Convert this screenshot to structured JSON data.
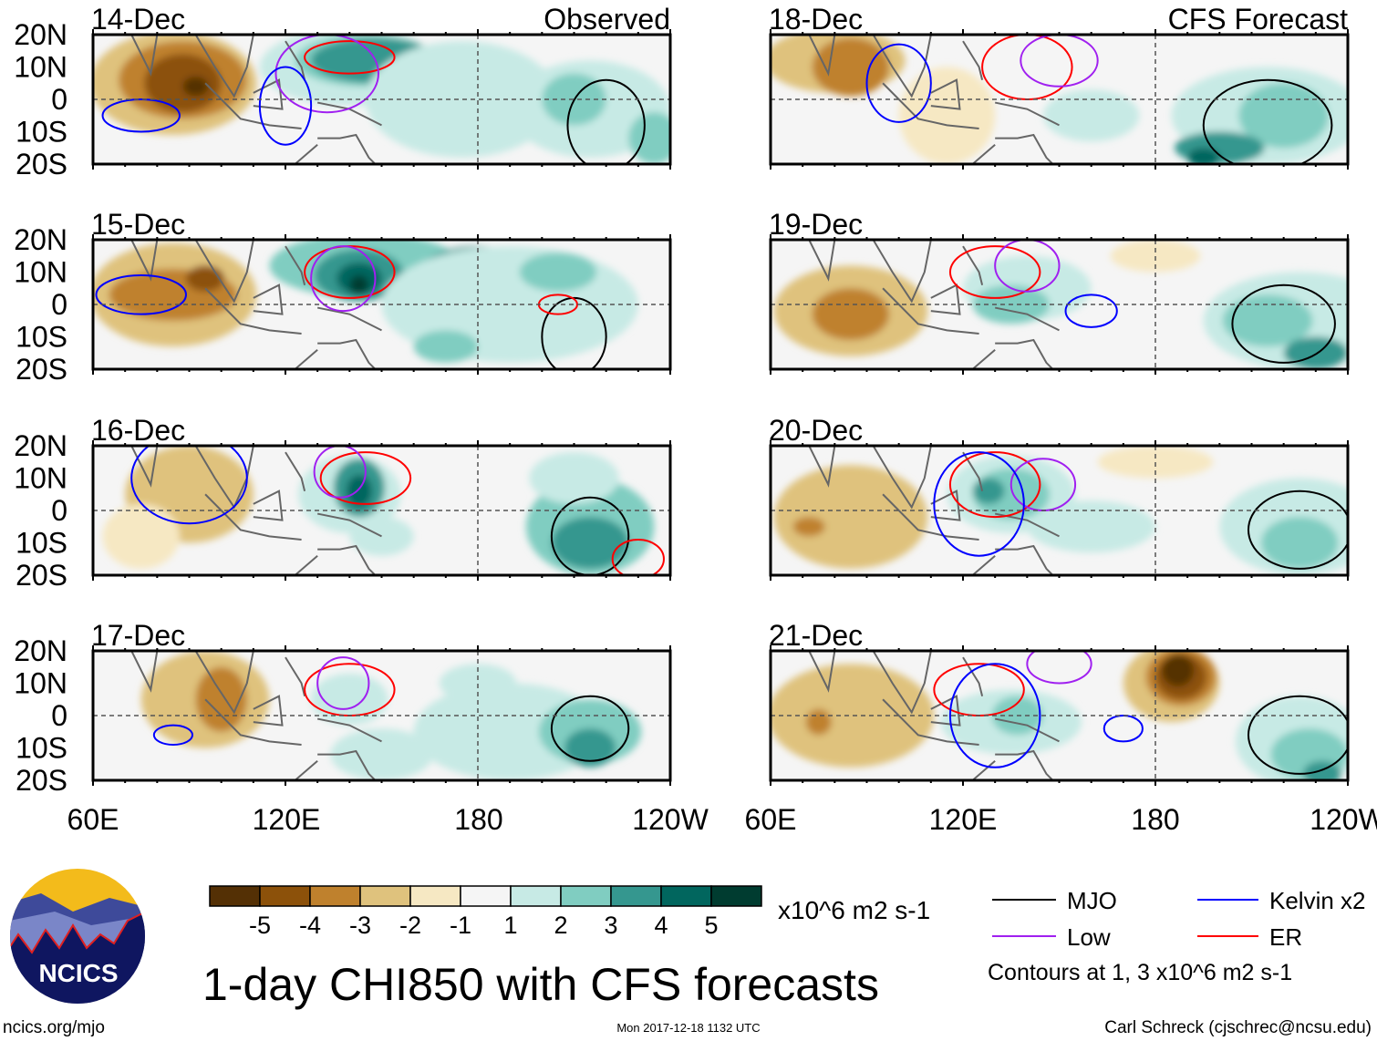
{
  "figure": {
    "title": "1-day CHI850 with CFS forecasts",
    "observed_label": "Observed",
    "forecast_label": "CFS Forecast",
    "panels": [
      {
        "date": "14-Dec",
        "kind": "observed"
      },
      {
        "date": "15-Dec",
        "kind": "observed"
      },
      {
        "date": "16-Dec",
        "kind": "observed"
      },
      {
        "date": "17-Dec",
        "kind": "observed"
      },
      {
        "date": "18-Dec",
        "kind": "forecast"
      },
      {
        "date": "19-Dec",
        "kind": "forecast"
      },
      {
        "date": "20-Dec",
        "kind": "forecast"
      },
      {
        "date": "21-Dec",
        "kind": "forecast"
      }
    ],
    "lat_labels": [
      "20N",
      "10N",
      "0",
      "10S",
      "20S"
    ],
    "lon_labels": [
      "60E",
      "120E",
      "180",
      "120W"
    ]
  },
  "colorbar": {
    "labels": [
      "-5",
      "-4",
      "-3",
      "-2",
      "-1",
      "1",
      "2",
      "3",
      "4",
      "5"
    ],
    "colors": [
      "#543005",
      "#8c510a",
      "#bf812d",
      "#dfc27d",
      "#f6e8c3",
      "#f5f5f5",
      "#c7eae5",
      "#80cdc1",
      "#35978f",
      "#01665e",
      "#003c30"
    ],
    "units": "x10^6 m2 s-1"
  },
  "legend": {
    "items": [
      {
        "label": "MJO",
        "color": "#000000"
      },
      {
        "label": "Kelvin x2",
        "color": "#0000ff"
      },
      {
        "label": "Low",
        "color": "#a020f0"
      },
      {
        "label": "ER",
        "color": "#ff0000"
      }
    ],
    "note": "Contours at 1, 3 x10^6 m2 s-1"
  },
  "footer": {
    "logo_text": "NCICS",
    "url": "ncics.org/mjo",
    "timestamp": "Mon 2017-12-18 1132 UTC",
    "author": "Carl Schreck (cjschrec@ncsu.edu)"
  }
}
